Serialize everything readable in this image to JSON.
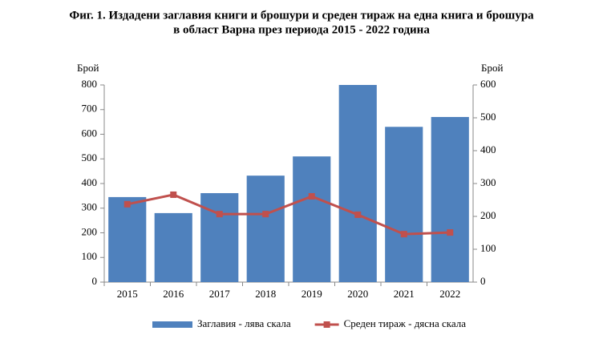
{
  "chart_data": {
    "type": "combo",
    "title": [
      "Фиг. 1. Издадени заглавия книги и брошури и среден тираж на една книга и брошура",
      "в област Варна през периода 2015 - 2022 година"
    ],
    "y_label": "Брой",
    "y2_label": "Брой",
    "categories": [
      "2015",
      "2016",
      "2017",
      "2018",
      "2019",
      "2020",
      "2021",
      "2022"
    ],
    "series": [
      {
        "name": "Заглавия - лява скала",
        "type": "bar",
        "color": "#4f81bd",
        "values": [
          345,
          280,
          361,
          432,
          510,
          800,
          630,
          670
        ]
      },
      {
        "name": "Среден тираж - дясна скала",
        "type": "line",
        "axis": "y2",
        "color": "#c0504d",
        "values": [
          237,
          266,
          207,
          207,
          261,
          205,
          146,
          151
        ]
      }
    ],
    "ylim": [
      0,
      800
    ],
    "yticks": [
      0,
      100,
      200,
      300,
      400,
      500,
      600,
      700,
      800
    ],
    "y2lim": [
      0,
      600
    ],
    "y2ticks": [
      0,
      100,
      200,
      300,
      400,
      500,
      600
    ],
    "legend": "bottom"
  }
}
